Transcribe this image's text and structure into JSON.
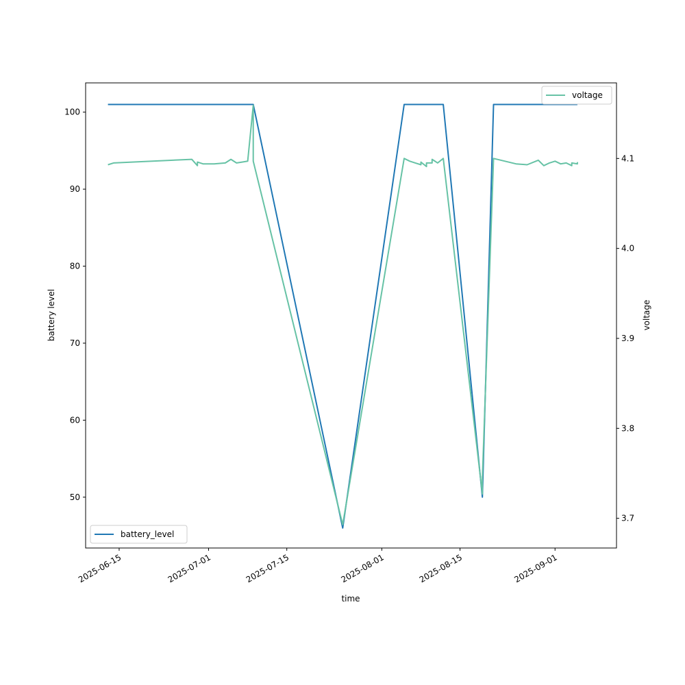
{
  "chart_data": {
    "type": "line",
    "title": "",
    "xlabel": "time",
    "ylabel_left": "battery level",
    "ylabel_right": "voltage",
    "xlim": [
      "2025-06-09",
      "2025-09-12"
    ],
    "ylim_left": [
      43.4,
      103.8
    ],
    "ylim_right": [
      3.667,
      4.184
    ],
    "x_ticks": [
      "2025-06-15",
      "2025-07-01",
      "2025-07-15",
      "2025-08-01",
      "2025-08-15",
      "2025-09-01"
    ],
    "y_ticks_left": [
      "50",
      "60",
      "70",
      "80",
      "90",
      "100"
    ],
    "y_ticks_right": [
      "3.7",
      "3.8",
      "3.9",
      "4.0",
      "4.1"
    ],
    "grid": false,
    "series": [
      {
        "name": "battery_level",
        "axis": "left",
        "color": "#1f77b4",
        "legend_position": "lower-left",
        "points": [
          [
            "2025-06-13",
            101
          ],
          [
            "2025-07-09",
            101
          ],
          [
            "2025-07-25",
            46
          ],
          [
            "2025-08-05",
            101
          ],
          [
            "2025-08-12",
            101
          ],
          [
            "2025-08-19",
            50
          ],
          [
            "2025-08-21",
            101
          ],
          [
            "2025-09-05",
            101
          ]
        ]
      },
      {
        "name": "voltage",
        "axis": "right",
        "color": "#66c2a5",
        "legend_position": "upper-right",
        "points": [
          [
            "2025-06-13",
            4.093
          ],
          [
            "2025-06-14",
            4.095
          ],
          [
            "2025-06-28",
            4.099
          ],
          [
            "2025-06-29",
            4.092
          ],
          [
            "2025-06-29",
            4.096
          ],
          [
            "2025-06-30",
            4.094
          ],
          [
            "2025-07-02",
            4.094
          ],
          [
            "2025-07-04",
            4.095
          ],
          [
            "2025-07-05",
            4.099
          ],
          [
            "2025-07-06",
            4.095
          ],
          [
            "2025-07-07",
            4.096
          ],
          [
            "2025-07-08",
            4.097
          ],
          [
            "2025-07-09",
            4.159
          ],
          [
            "2025-07-09",
            4.097
          ],
          [
            "2025-07-25",
            3.693
          ],
          [
            "2025-08-05",
            4.1
          ],
          [
            "2025-08-06",
            4.097
          ],
          [
            "2025-08-07",
            4.095
          ],
          [
            "2025-08-08",
            4.093
          ],
          [
            "2025-08-08",
            4.096
          ],
          [
            "2025-08-09",
            4.091
          ],
          [
            "2025-08-09",
            4.095
          ],
          [
            "2025-08-10",
            4.095
          ],
          [
            "2025-08-10",
            4.099
          ],
          [
            "2025-08-11",
            4.095
          ],
          [
            "2025-08-12",
            4.1
          ],
          [
            "2025-08-19",
            3.727
          ],
          [
            "2025-08-19",
            3.745
          ],
          [
            "2025-08-21",
            4.1
          ],
          [
            "2025-08-25",
            4.094
          ],
          [
            "2025-08-27",
            4.093
          ],
          [
            "2025-08-29",
            4.098
          ],
          [
            "2025-08-30",
            4.092
          ],
          [
            "2025-08-31",
            4.095
          ],
          [
            "2025-09-01",
            4.097
          ],
          [
            "2025-09-02",
            4.094
          ],
          [
            "2025-09-03",
            4.095
          ],
          [
            "2025-09-04",
            4.092
          ],
          [
            "2025-09-04",
            4.095
          ],
          [
            "2025-09-05",
            4.094
          ],
          [
            "2025-09-05",
            4.096
          ]
        ]
      }
    ]
  }
}
